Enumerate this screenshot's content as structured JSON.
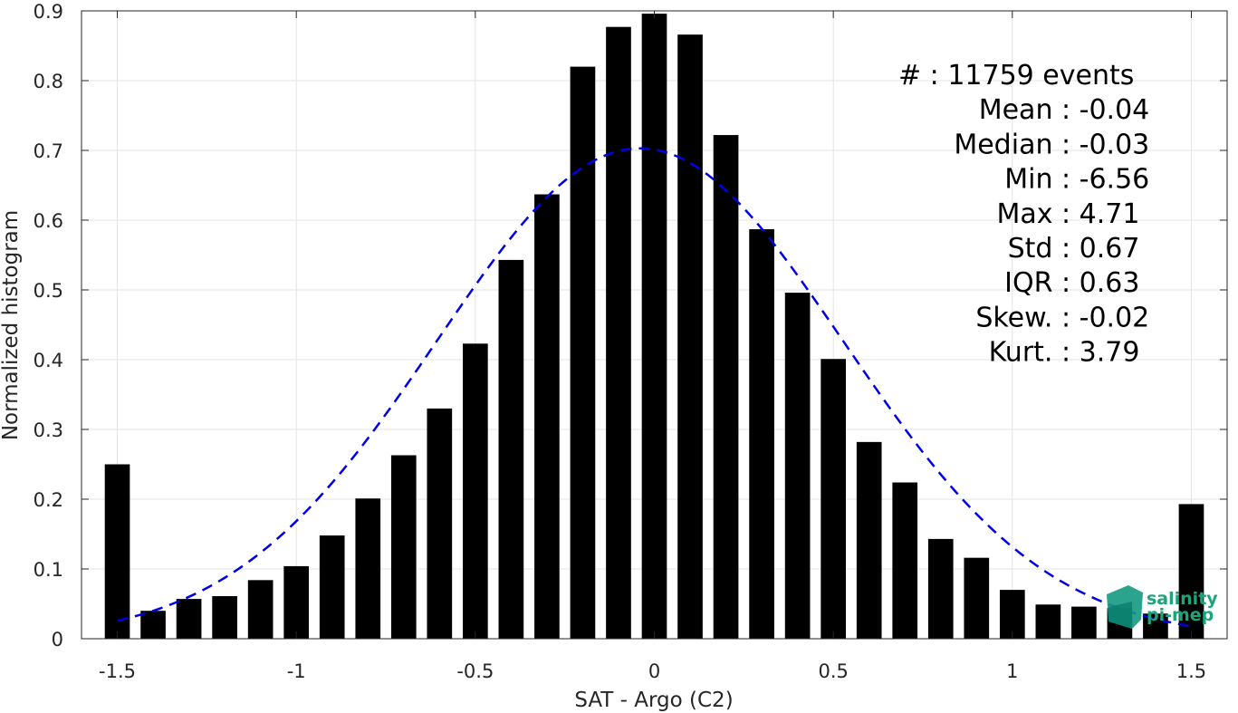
{
  "chart_data": {
    "type": "bar",
    "xlabel": "SAT - Argo (C2)",
    "ylabel": "Normalized histogram",
    "xlim": [
      -1.6,
      1.6
    ],
    "ylim": [
      0,
      0.9
    ],
    "xticks": [
      -1.5,
      -1,
      -0.5,
      0,
      0.5,
      1,
      1.5
    ],
    "xtick_labels": [
      "-1.5",
      "-1",
      "-0.5",
      "0",
      "0.5",
      "1",
      "1.5"
    ],
    "yticks": [
      0,
      0.1,
      0.2,
      0.3,
      0.4,
      0.5,
      0.6,
      0.7,
      0.8,
      0.9
    ],
    "ytick_labels": [
      "0",
      "0.1",
      "0.2",
      "0.3",
      "0.4",
      "0.5",
      "0.6",
      "0.7",
      "0.8",
      "0.9"
    ],
    "grid": true,
    "bar_color": "#000000",
    "x": [
      -1.5,
      -1.4,
      -1.3,
      -1.2,
      -1.1,
      -1.0,
      -0.9,
      -0.8,
      -0.7,
      -0.6,
      -0.5,
      -0.4,
      -0.3,
      -0.2,
      -0.1,
      0.0,
      0.1,
      0.2,
      0.3,
      0.4,
      0.5,
      0.6,
      0.7,
      0.8,
      0.9,
      1.0,
      1.1,
      1.2,
      1.3,
      1.4,
      1.5
    ],
    "values": [
      0.25,
      0.04,
      0.057,
      0.061,
      0.084,
      0.104,
      0.148,
      0.201,
      0.263,
      0.33,
      0.423,
      0.543,
      0.637,
      0.82,
      0.877,
      0.896,
      0.866,
      0.722,
      0.587,
      0.496,
      0.401,
      0.282,
      0.224,
      0.143,
      0.116,
      0.07,
      0.049,
      0.046,
      0.044,
      0.036,
      0.193
    ],
    "fit_curve": {
      "style": "dashed",
      "color": "#0000e6",
      "mean": -0.04,
      "std": 0.568,
      "peak": 0.703
    },
    "stats": [
      {
        "label": "#  : 11759 events"
      },
      {
        "label": "Mean : -0.04"
      },
      {
        "label": "Median : -0.03"
      },
      {
        "label": "Min : -6.56"
      },
      {
        "label": "Max : 4.71"
      },
      {
        "label": "Std : 0.67"
      },
      {
        "label": "IQR : 0.63"
      },
      {
        "label": "Skew. : -0.02"
      },
      {
        "label": "Kurt. : 3.79"
      }
    ]
  },
  "logo": {
    "line1": "salinity",
    "line2": "pi-mep"
  }
}
